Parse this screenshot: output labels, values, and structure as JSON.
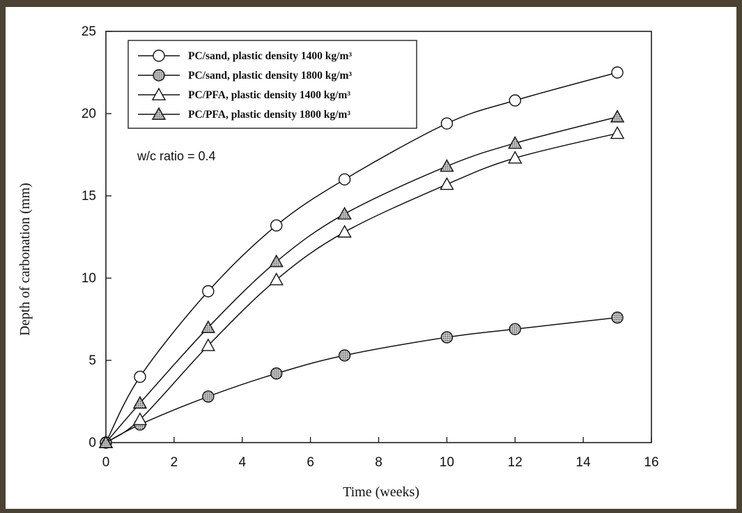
{
  "chart_data": {
    "type": "line",
    "xlabel": "Time  (weeks)",
    "ylabel": "Depth of carbonation  (mm)",
    "xlim": [
      0,
      16
    ],
    "ylim": [
      0,
      25
    ],
    "xticks": [
      "0",
      "2",
      "4",
      "6",
      "8",
      "10",
      "12",
      "14",
      "16"
    ],
    "yticks": [
      "0",
      "5",
      "10",
      "15",
      "20",
      "25"
    ],
    "grid": false,
    "legend_position": "top-left",
    "annotation": "w/c ratio = 0.4",
    "x": [
      0,
      1,
      3,
      5,
      7,
      10,
      12,
      15
    ],
    "series": [
      {
        "name": "PC/sand, plastic density 1400 kg/m³",
        "marker": "circle-open",
        "values": [
          0,
          4.0,
          9.2,
          13.2,
          16.0,
          19.4,
          20.8,
          22.5
        ]
      },
      {
        "name": "PC/sand, plastic density 1800 kg/m³",
        "marker": "circle-filled",
        "values": [
          0,
          1.1,
          2.8,
          4.2,
          5.3,
          6.4,
          6.9,
          7.6
        ]
      },
      {
        "name": "PC/PFA, plastic density 1400 kg/m³",
        "marker": "triangle-open",
        "values": [
          0,
          1.4,
          5.9,
          9.9,
          12.8,
          15.7,
          17.3,
          18.8
        ]
      },
      {
        "name": "PC/PFA, plastic density 1800 kg/m³",
        "marker": "triangle-filled",
        "values": [
          0,
          2.4,
          7.0,
          11.0,
          13.9,
          16.8,
          18.2,
          19.8
        ]
      }
    ]
  }
}
